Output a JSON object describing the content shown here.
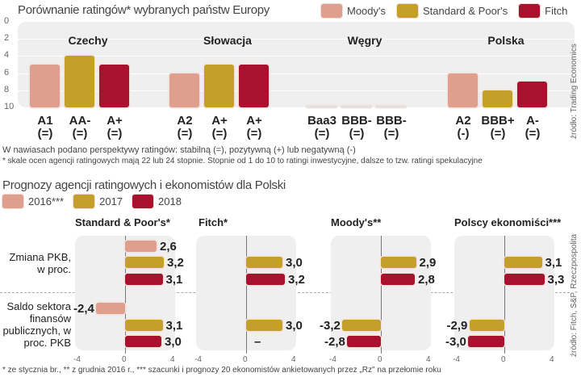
{
  "colors": {
    "moodys": "#dea08d",
    "sp": "#c4a02a",
    "fitch": "#a8122e",
    "panel": "#efefef"
  },
  "chart_data": [
    {
      "type": "bar",
      "title": "Porównanie ratingów* wybranych państw Europy",
      "ylim": [
        10,
        0
      ],
      "yticks": [
        "0",
        "2",
        "4",
        "6",
        "8",
        "10"
      ],
      "ytick_values": [
        0,
        2,
        4,
        6,
        8,
        10
      ],
      "legend": [
        "Moody's",
        "Standard & Poor's",
        "Fitch"
      ],
      "categories": [
        "Czechy",
        "Słowacja",
        "Węgry",
        "Polska"
      ],
      "series": [
        {
          "name": "Moody's",
          "values": [
            5,
            6,
            10,
            6
          ],
          "labels": [
            "A1",
            "A2",
            "Baa3",
            "A2"
          ],
          "outlook": [
            "(=)",
            "(=)",
            "(=)",
            "(-)"
          ]
        },
        {
          "name": "Standard & Poor's",
          "values": [
            4,
            5,
            10,
            8
          ],
          "labels": [
            "AA-",
            "A+",
            "BBB-",
            "BBB+"
          ],
          "outlook": [
            "(=)",
            "(=)",
            "(=)",
            "(=)"
          ]
        },
        {
          "name": "Fitch",
          "values": [
            5,
            5,
            10,
            7
          ],
          "labels": [
            "A+",
            "A+",
            "BBB-",
            "A-"
          ],
          "outlook": [
            "(=)",
            "(=)",
            "(=)",
            "(=)"
          ]
        }
      ],
      "notes": [
        "W nawiasach podano perspektywy ratingów: stabilną (=), pozytywną (+) lub negatywną (-)",
        "* skale ocen agencji ratingowych mają 22 lub 24 stopnie. Stopnie od 1 do 10 to ratingi inwestycyjne, dalsze to tzw. ratingi spekulacyjne"
      ],
      "source": "źródło: Trading Economics"
    },
    {
      "type": "bar",
      "orientation": "horizontal",
      "title": "Prognozy agencji ratingowych i ekonomistów dla Polski",
      "xlim": [
        -4,
        4
      ],
      "xticks": [
        "-4",
        "0",
        "4"
      ],
      "legend": [
        "2016***",
        "2017",
        "2018"
      ],
      "rows": [
        "Zmiana PKB, w proc.",
        "Saldo sektora finansów publicznych, w proc. PKB"
      ],
      "panels": [
        {
          "name": "Standard & Poor's*",
          "gdp": [
            2.6,
            3.2,
            3.1
          ],
          "gdp_labels": [
            "2,6",
            "3,2",
            "3,1"
          ],
          "deficit": [
            -2.4,
            3.1,
            3.0
          ],
          "deficit_labels": [
            "-2,4",
            "3,1",
            "3,0"
          ]
        },
        {
          "name": "Fitch*",
          "gdp": [
            null,
            3.0,
            3.2
          ],
          "gdp_labels": [
            "",
            "3,0",
            "3,2"
          ],
          "deficit": [
            null,
            3.0,
            null
          ],
          "deficit_labels": [
            "",
            "3,0",
            "–"
          ]
        },
        {
          "name": "Moody's**",
          "gdp": [
            null,
            2.9,
            2.8
          ],
          "gdp_labels": [
            "",
            "2,9",
            "2,8"
          ],
          "deficit": [
            null,
            -3.2,
            -2.8
          ],
          "deficit_labels": [
            "",
            "-3,2",
            "-2,8"
          ]
        },
        {
          "name": "Polscy ekonomiści***",
          "gdp": [
            null,
            3.1,
            3.3
          ],
          "gdp_labels": [
            "",
            "3,1",
            "3,3"
          ],
          "deficit": [
            null,
            -2.9,
            -3.0
          ],
          "deficit_labels": [
            "",
            "-2,9",
            "-3,0"
          ]
        }
      ],
      "note": "* ze stycznia br., ** z grudnia 2016 r., *** szacunki i prognozy 20 ekonomistów ankietowanych przez „Rz\" na przełomie roku",
      "source": "źródło: Fitch, S&P, Rzeczpospolita"
    }
  ]
}
